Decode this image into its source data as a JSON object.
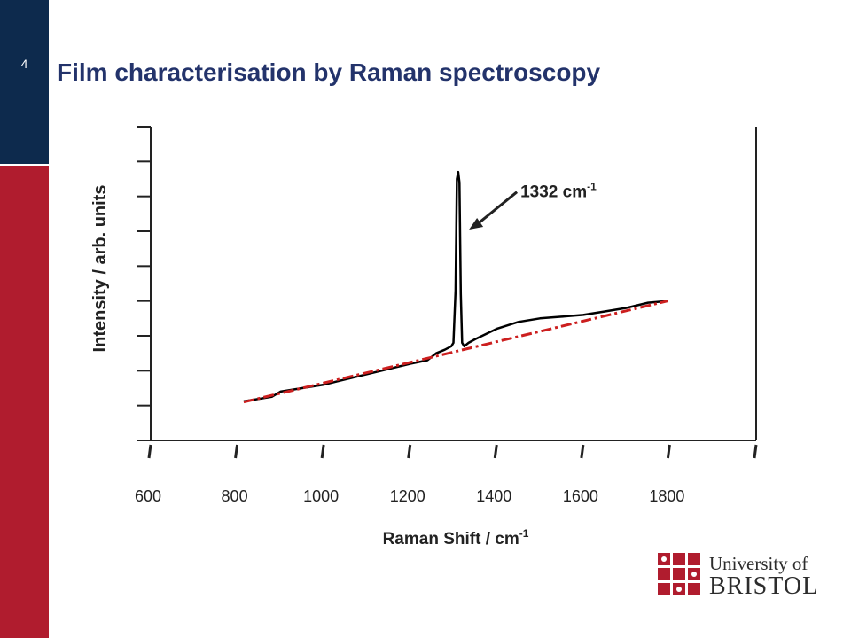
{
  "slide": {
    "number": "4",
    "title": "Film characterisation by Raman spectroscopy"
  },
  "logo": {
    "line1": "University of",
    "line2": "BRISTOL",
    "colors": {
      "crest": "#b01c2e",
      "text": "#2c2c2c"
    }
  },
  "colors": {
    "sidebar_top": "#0d2a4d",
    "sidebar_bottom": "#b01c2e",
    "title": "#23336b"
  },
  "chart_data": {
    "type": "line",
    "title": "",
    "xlabel": "Raman Shift / cm",
    "xlabel_sup": "-1",
    "ylabel": "Intensity / arb. units",
    "xlim": [
      600,
      2000
    ],
    "ylim": [
      0,
      9
    ],
    "x_ticks": [
      600,
      800,
      1000,
      1200,
      1400,
      1600,
      1800
    ],
    "y_tick_count": 9,
    "y_tick_labels": false,
    "grid": false,
    "legend": "none",
    "series": [
      {
        "color": "#000000",
        "style": "dotted-solid",
        "x": [
          815,
          880,
          900,
          1000,
          1100,
          1200,
          1240,
          1260,
          1280,
          1295,
          1300,
          1305,
          1308,
          1311,
          1314,
          1317,
          1320,
          1325,
          1335,
          1350,
          1400,
          1450,
          1500,
          1550,
          1600,
          1650,
          1700,
          1750,
          1795
        ],
        "y": [
          1.12,
          1.25,
          1.4,
          1.6,
          1.9,
          2.2,
          2.3,
          2.5,
          2.6,
          2.7,
          2.8,
          4.3,
          7.5,
          7.7,
          7.4,
          4.2,
          2.8,
          2.7,
          2.8,
          2.9,
          3.2,
          3.4,
          3.5,
          3.55,
          3.6,
          3.7,
          3.8,
          3.95,
          4.0
        ]
      },
      {
        "color": "#cc1f1f",
        "style": "dash-dot",
        "x": [
          815,
          1795
        ],
        "y": [
          1.1,
          4.0
        ]
      }
    ],
    "annotations": [
      {
        "text": "1332 cm",
        "sup": "-1",
        "x": 1332,
        "y": 7.0
      }
    ]
  }
}
